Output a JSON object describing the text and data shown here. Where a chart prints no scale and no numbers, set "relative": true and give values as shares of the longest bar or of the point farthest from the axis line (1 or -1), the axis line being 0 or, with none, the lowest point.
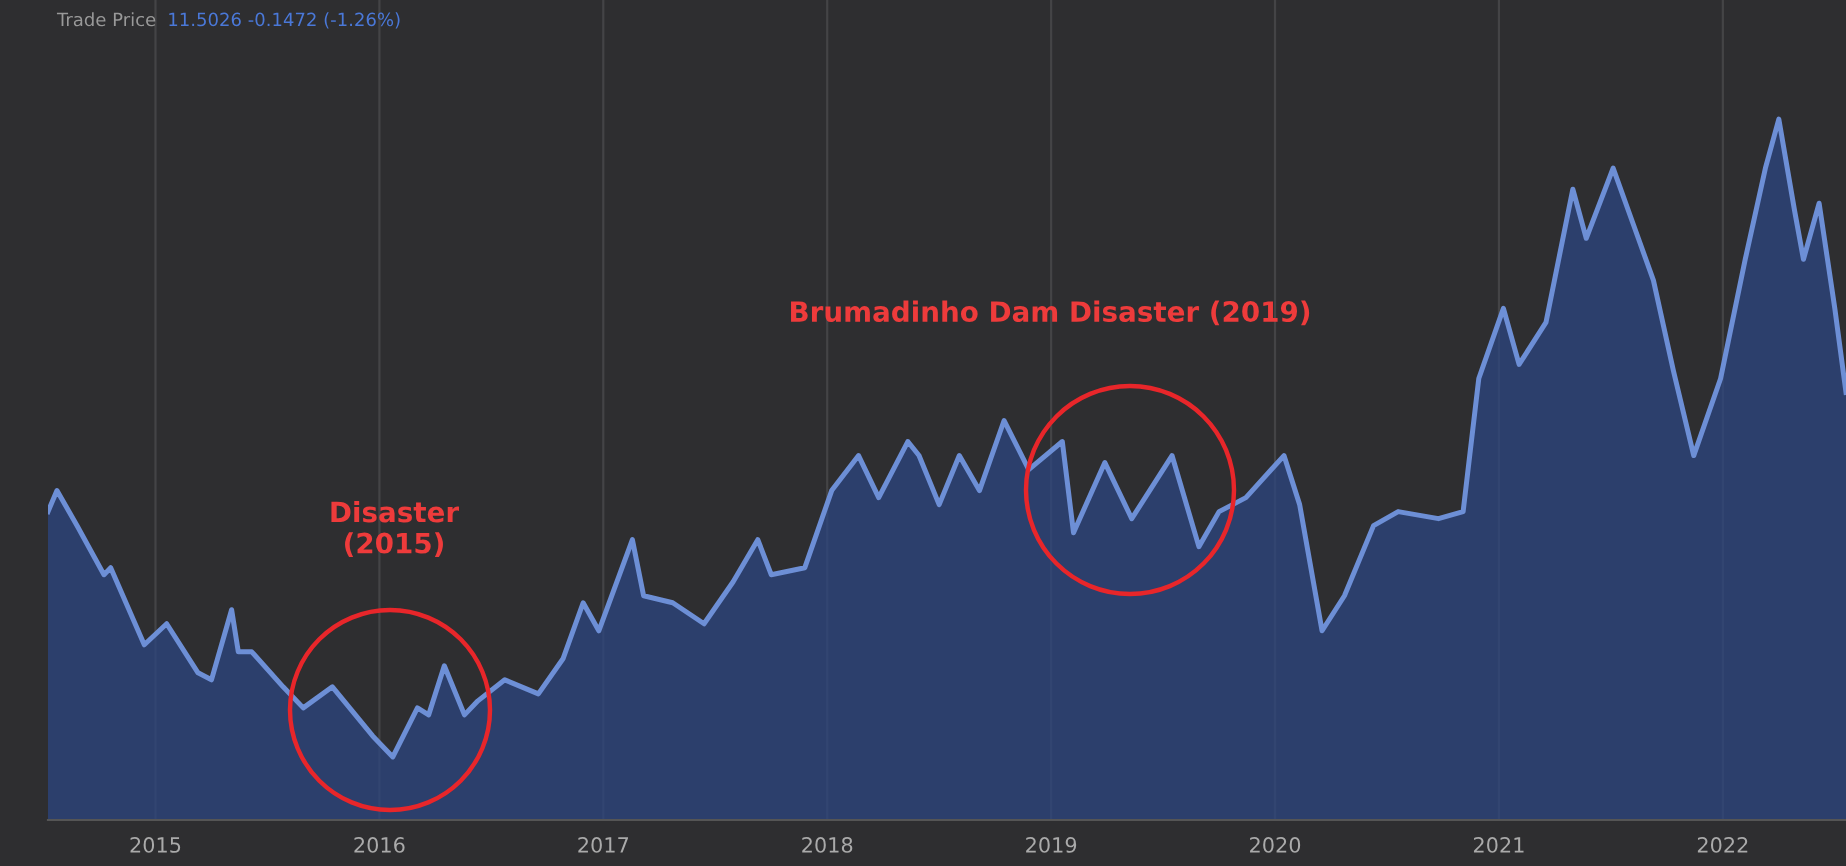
{
  "chart_data": {
    "type": "area",
    "relative": true,
    "annotations": [
      "Trade Price",
      "11.5026 -0.1472 (-1.26%)",
      "Disaster\n(2015)",
      "Brumadinho Dam Disaster (2019)"
    ],
    "xlim": [
      2014.52,
      2022.55
    ],
    "xticks": [
      2015,
      2016,
      2017,
      2018,
      2019,
      2020,
      2021,
      2022
    ],
    "grid": "x",
    "series": [
      {
        "color": "#6d8fd6",
        "x": [
          2014.52,
          2014.56,
          2014.65,
          2014.77,
          2014.8,
          2014.95,
          2015.05,
          2015.19,
          2015.25,
          2015.34,
          2015.37,
          2015.43,
          2015.57,
          2015.66,
          2015.79,
          2015.97,
          2016.06,
          2016.17,
          2016.22,
          2016.29,
          2016.38,
          2016.44,
          2016.56,
          2016.71,
          2016.82,
          2016.91,
          2016.98,
          2017.13,
          2017.18,
          2017.31,
          2017.45,
          2017.58,
          2017.69,
          2017.75,
          2017.9,
          2018.02,
          2018.14,
          2018.23,
          2018.36,
          2018.41,
          2018.5,
          2018.59,
          2018.68,
          2018.79,
          2018.9,
          2019.05,
          2019.1,
          2019.24,
          2019.36,
          2019.54,
          2019.66,
          2019.75,
          2019.87,
          2020.04,
          2020.11,
          2020.21,
          2020.31,
          2020.44,
          2020.55,
          2020.73,
          2020.84,
          2020.91,
          2021.02,
          2021.09,
          2021.21,
          2021.33,
          2021.39,
          2021.51,
          2021.6,
          2021.69,
          2021.78,
          2021.87,
          2021.99,
          2022.1,
          2022.19,
          2022.25,
          2022.32,
          2022.36,
          2022.43,
          2022.5,
          2022.55
        ],
        "values": [
          0.44,
          0.47,
          0.42,
          0.35,
          0.36,
          0.25,
          0.28,
          0.21,
          0.2,
          0.3,
          0.24,
          0.24,
          0.19,
          0.16,
          0.19,
          0.12,
          0.09,
          0.16,
          0.15,
          0.22,
          0.15,
          0.17,
          0.2,
          0.18,
          0.23,
          0.31,
          0.27,
          0.4,
          0.32,
          0.31,
          0.28,
          0.34,
          0.4,
          0.35,
          0.36,
          0.47,
          0.52,
          0.46,
          0.54,
          0.52,
          0.45,
          0.52,
          0.47,
          0.57,
          0.5,
          0.54,
          0.41,
          0.51,
          0.43,
          0.52,
          0.39,
          0.44,
          0.46,
          0.52,
          0.45,
          0.27,
          0.32,
          0.42,
          0.44,
          0.43,
          0.44,
          0.63,
          0.73,
          0.65,
          0.71,
          0.9,
          0.83,
          0.93,
          0.85,
          0.77,
          0.64,
          0.52,
          0.63,
          0.8,
          0.93,
          1,
          0.87,
          0.8,
          0.88,
          0.73,
          0.61
        ]
      }
    ]
  }
}
